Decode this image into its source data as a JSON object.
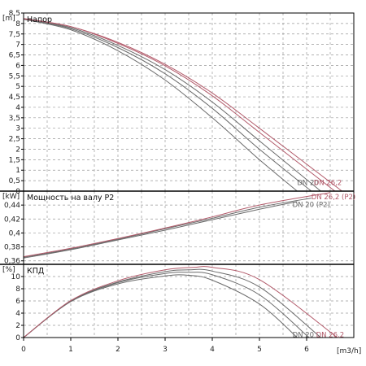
{
  "chart_data": {
    "type": "line",
    "x_label": "[m3/h]",
    "x_range": [
      0,
      7
    ],
    "x_ticks": [
      "0",
      "1",
      "2",
      "3",
      "4",
      "5",
      "6"
    ],
    "colors": {
      "red": "#b25a6a",
      "gray": "#6a6a6a"
    },
    "panels": [
      {
        "id": "head",
        "title": "Напор",
        "unit": "[m]",
        "y_range": [
          0,
          8.5
        ],
        "y_ticks": [
          "0",
          "0,5",
          "1",
          "1,5",
          "2",
          "2,5",
          "3",
          "3,5",
          "4",
          "4,5",
          "5",
          "5,5",
          "6",
          "6,5",
          "7",
          "7,5",
          "8",
          "8,5"
        ],
        "series": [
          {
            "label": "DN 20",
            "color": "gray",
            "points": [
              [
                0,
                8.2
              ],
              [
                1,
                7.7
              ],
              [
                2,
                6.7
              ],
              [
                3,
                5.3
              ],
              [
                4,
                3.5
              ],
              [
                5,
                1.5
              ],
              [
                5.8,
                0
              ]
            ]
          },
          {
            "label": "",
            "color": "gray",
            "points": [
              [
                0,
                8.22
              ],
              [
                1,
                7.75
              ],
              [
                2,
                6.85
              ],
              [
                3,
                5.6
              ],
              [
                4,
                3.95
              ],
              [
                5,
                2.0
              ],
              [
                6.1,
                0
              ]
            ]
          },
          {
            "label": "",
            "color": "gray",
            "points": [
              [
                0,
                8.22
              ],
              [
                1,
                7.8
              ],
              [
                2,
                6.95
              ],
              [
                3,
                5.8
              ],
              [
                4,
                4.25
              ],
              [
                5,
                2.4
              ],
              [
                6.3,
                0
              ]
            ]
          },
          {
            "label": "",
            "color": "red",
            "points": [
              [
                0,
                8.23
              ],
              [
                1,
                7.85
              ],
              [
                2,
                7.05
              ],
              [
                3,
                5.98
              ],
              [
                4,
                4.55
              ],
              [
                5,
                2.8
              ],
              [
                6.6,
                0
              ]
            ]
          },
          {
            "label": "DN 26,2",
            "color": "red",
            "points": [
              [
                0,
                8.24
              ],
              [
                1,
                7.85
              ],
              [
                2,
                7.1
              ],
              [
                3,
                6.05
              ],
              [
                4,
                4.68
              ],
              [
                5,
                3.0
              ],
              [
                6.75,
                0
              ]
            ]
          }
        ],
        "curve_labels": [
          {
            "text": "DN 20",
            "color": "gray",
            "x": 5.8,
            "y": 0.4
          },
          {
            "text": "DN 26,2",
            "color": "red",
            "x": 6.15,
            "y": 0.4
          }
        ]
      },
      {
        "id": "power",
        "title": "Мощность на валу P2",
        "unit": "[kW]",
        "y_range": [
          0.355,
          0.46
        ],
        "y_ticks": [
          "0,36",
          "0,38",
          "0,4",
          "0,42",
          "0,44"
        ],
        "series": [
          {
            "label": "DN 20 (P2)",
            "color": "gray",
            "points": [
              [
                0,
                0.364
              ],
              [
                1,
                0.376
              ],
              [
                2,
                0.39
              ],
              [
                3,
                0.404
              ],
              [
                4,
                0.419
              ],
              [
                5,
                0.434
              ],
              [
                5.8,
                0.445
              ]
            ]
          },
          {
            "label": "",
            "color": "gray",
            "points": [
              [
                0,
                0.365
              ],
              [
                1,
                0.377
              ],
              [
                2,
                0.391
              ],
              [
                3,
                0.406
              ],
              [
                4,
                0.421
              ],
              [
                5,
                0.437
              ],
              [
                6.1,
                0.45
              ]
            ]
          },
          {
            "label": "DN 26,2 (P2)",
            "color": "red",
            "points": [
              [
                0,
                0.366
              ],
              [
                1,
                0.378
              ],
              [
                2,
                0.392
              ],
              [
                3,
                0.407
              ],
              [
                4,
                0.423
              ],
              [
                5,
                0.44
              ],
              [
                6.5,
                0.458
              ]
            ]
          }
        ],
        "curve_labels": [
          {
            "text": "DN 26,2 (P2)",
            "color": "red",
            "x": 6.1,
            "y": 0.452
          },
          {
            "text": "DN 20 (P2)",
            "color": "gray",
            "x": 5.7,
            "y": 0.441
          }
        ]
      },
      {
        "id": "efficiency",
        "title": "КПД",
        "unit": "[%]",
        "y_range": [
          0,
          12
        ],
        "y_ticks": [
          "0",
          "2",
          "4",
          "6",
          "8",
          "10"
        ],
        "series": [
          {
            "label": "DN 20",
            "color": "gray",
            "points": [
              [
                0,
                0
              ],
              [
                1,
                5.9
              ],
              [
                2,
                8.8
              ],
              [
                3,
                10.1
              ],
              [
                3.5,
                10.2
              ],
              [
                4,
                9.4
              ],
              [
                5,
                5.5
              ],
              [
                5.8,
                0
              ]
            ]
          },
          {
            "label": "",
            "color": "gray",
            "points": [
              [
                0,
                0
              ],
              [
                1,
                5.95
              ],
              [
                2,
                9.0
              ],
              [
                3,
                10.5
              ],
              [
                3.5,
                10.7
              ],
              [
                4,
                10.3
              ],
              [
                5,
                7.0
              ],
              [
                6.05,
                0
              ]
            ]
          },
          {
            "label": "",
            "color": "gray",
            "points": [
              [
                0,
                0
              ],
              [
                1,
                6.0
              ],
              [
                2,
                9.1
              ],
              [
                3,
                10.8
              ],
              [
                3.5,
                11.1
              ],
              [
                4,
                10.9
              ],
              [
                5,
                8.3
              ],
              [
                6.3,
                0
              ]
            ]
          },
          {
            "label": "DN 26,2",
            "color": "red",
            "points": [
              [
                0,
                0
              ],
              [
                1,
                6.05
              ],
              [
                2,
                9.3
              ],
              [
                3,
                11.1
              ],
              [
                3.6,
                11.5
              ],
              [
                4,
                11.5
              ],
              [
                5,
                9.5
              ],
              [
                6.65,
                0
              ]
            ]
          }
        ],
        "curve_labels": [
          {
            "text": "DN 20",
            "color": "gray",
            "x": 5.7,
            "y": 0.5
          },
          {
            "text": "DN 26,2",
            "color": "red",
            "x": 6.2,
            "y": 0.5
          }
        ]
      }
    ]
  }
}
